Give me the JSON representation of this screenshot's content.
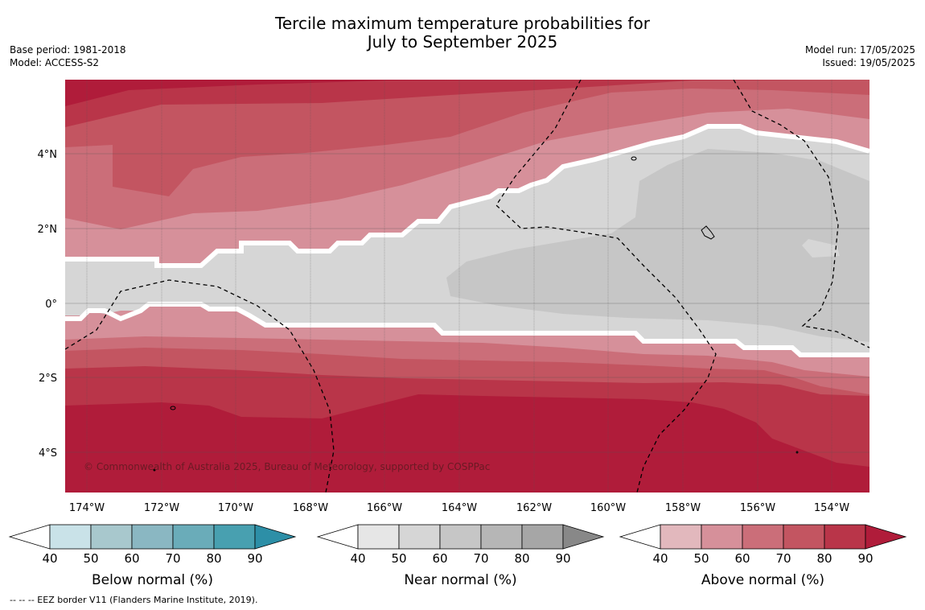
{
  "title": {
    "line1": "Tercile maximum temperature probabilities for",
    "line2": "July to September 2025"
  },
  "meta_left": {
    "base_period": "Base period: 1981-2018",
    "model": "Model: ACCESS-S2"
  },
  "meta_right": {
    "model_run": "Model run: 17/05/2025",
    "issued": "Issued: 19/05/2025"
  },
  "map": {
    "lat_labels": [
      "4°N",
      "2°N",
      "0°",
      "2°S",
      "4°S"
    ],
    "lon_labels": [
      "174°W",
      "172°W",
      "170°W",
      "168°W",
      "166°W",
      "164°W",
      "162°W",
      "160°W",
      "158°W",
      "156°W",
      "154°W"
    ],
    "copyright": "© Commonwealth of Australia 2025, Bureau of Meteorology, supported by COSPPac"
  },
  "colorbars": [
    {
      "title": "Below normal (%)",
      "ticks": [
        "40",
        "50",
        "60",
        "70",
        "80",
        "90"
      ],
      "colors": [
        "#ffffff",
        "#c9e2e8",
        "#a8c8cd",
        "#8ab7c2",
        "#6aacb9",
        "#48a0b0",
        "#2d8fa7"
      ]
    },
    {
      "title": "Near normal (%)",
      "ticks": [
        "40",
        "50",
        "60",
        "70",
        "80",
        "90"
      ],
      "colors": [
        "#ffffff",
        "#e6e6e6",
        "#d6d6d6",
        "#c6c6c6",
        "#b6b6b6",
        "#a6a6a6",
        "#888888"
      ]
    },
    {
      "title": "Above normal (%)",
      "ticks": [
        "40",
        "50",
        "60",
        "70",
        "80",
        "90"
      ],
      "colors": [
        "#ffffff",
        "#e2b8bd",
        "#d6909a",
        "#cb6e79",
        "#c35561",
        "#b93549",
        "#b01c3a"
      ]
    }
  ],
  "footnote": "--  --  -- EEZ border V11 (Flanders Marine Institute, 2019)."
}
